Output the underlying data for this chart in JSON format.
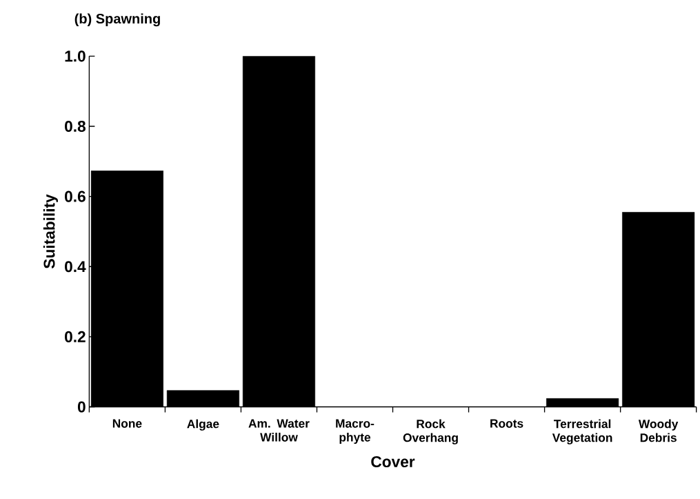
{
  "chart_data": {
    "type": "bar",
    "title": "(b) Spawning",
    "xlabel": "Cover",
    "ylabel": "Suitability",
    "categories": [
      "None",
      "Algae",
      "Am. Water Willow",
      "Macro-phyte",
      "Rock Overhang",
      "Roots",
      "Terrestrial Vegetation",
      "Woody Debris"
    ],
    "values": [
      0.673,
      0.047,
      1.0,
      0,
      0,
      0,
      0.024,
      0.555
    ],
    "color": "#000000",
    "ylim": [
      0,
      1
    ],
    "yticks": [
      0,
      0.2,
      0.4,
      0.6,
      0.8,
      {
        "value": 1,
        "label": "1.0"
      }
    ],
    "grid": false
  }
}
